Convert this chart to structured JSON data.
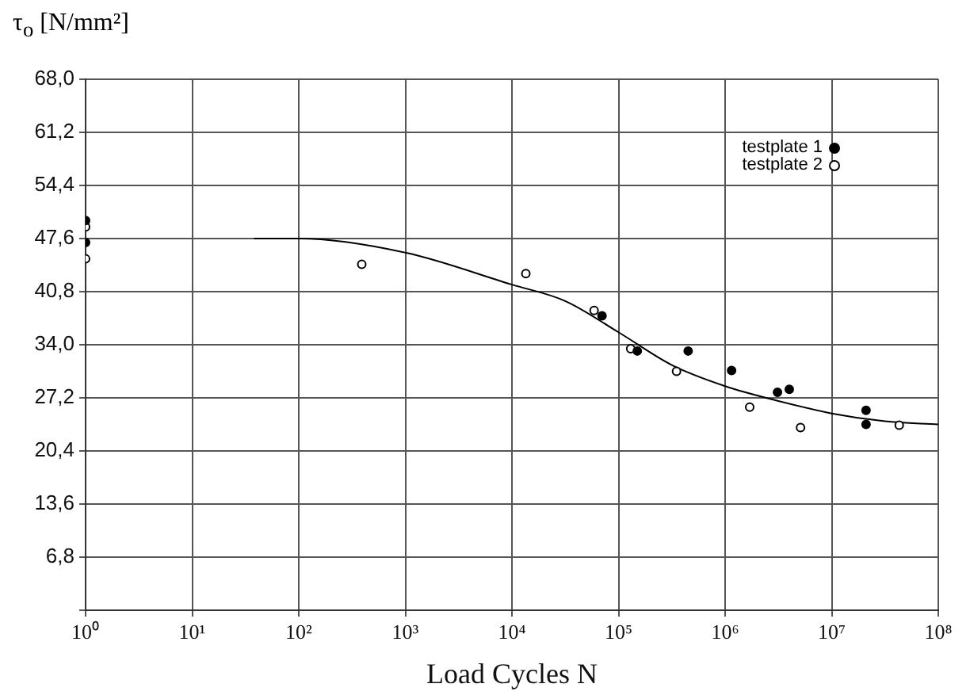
{
  "chart_data": {
    "type": "scatter",
    "ylabel": "τ$_{o}$ [N/mm²]",
    "xlabel": "Load Cycles N",
    "log": "x",
    "grid": true,
    "legend": "top right",
    "xlim": [
      1,
      100000000
    ],
    "xticks": [
      {
        "value": 1,
        "label": "10⁰"
      },
      {
        "value": 10,
        "label": "10¹"
      },
      {
        "value": 100,
        "label": "10²"
      },
      {
        "value": 1000,
        "label": "10³"
      },
      {
        "value": 10000,
        "label": "10⁴"
      },
      {
        "value": 100000,
        "label": "10⁵"
      },
      {
        "value": 1000000,
        "label": "10⁶"
      },
      {
        "value": 10000000,
        "label": "10⁷"
      },
      {
        "value": 100000000,
        "label": "10⁸"
      }
    ],
    "ylim": [
      0,
      68
    ],
    "yticks": [
      {
        "value": 0,
        "label": null
      },
      {
        "value": 6.8,
        "label": "6,8"
      },
      {
        "value": 13.6,
        "label": "13,6"
      },
      {
        "value": 20.4,
        "label": "20,4"
      },
      {
        "value": 27.2,
        "label": "27,2"
      },
      {
        "value": 34,
        "label": "34,0"
      },
      {
        "value": 40.8,
        "label": "40,8"
      },
      {
        "value": 47.6,
        "label": "47,6"
      },
      {
        "value": 54.4,
        "label": "54,4"
      },
      {
        "value": 61.2,
        "label": "61,2"
      },
      {
        "value": 68,
        "label": "68,0"
      }
    ],
    "series": [
      {
        "name": "testplate 1",
        "color": "#000000",
        "marker": "circle",
        "x": [
          1,
          1,
          70000,
          150000,
          450000,
          1150000,
          3100000,
          4000000,
          21000000,
          21000000
        ],
        "values": [
          49.9,
          47.1,
          37.7,
          33.2,
          33.2,
          30.7,
          27.9,
          28.3,
          25.6,
          23.8
        ]
      },
      {
        "name": "testplate 2",
        "color": "#000000",
        "marker": "circle",
        "x": [
          1,
          1,
          390,
          13500,
          59000,
          130000,
          350000,
          1700000,
          5100000,
          43000000
        ],
        "values": [
          49.1,
          45.0,
          44.3,
          43.1,
          38.4,
          33.5,
          30.6,
          26.0,
          23.4,
          23.7
        ]
      },
      {
        "type": "line",
        "color": "#000000",
        "marker": "none",
        "x": [
          38,
          100,
          1000,
          10000,
          31600,
          100000,
          316000,
          1000000,
          3160000,
          10000000,
          31600000,
          100000000
        ],
        "values": [
          47.6,
          47.6,
          45.8,
          41.7,
          39.6,
          35.6,
          31.4,
          28.7,
          26.8,
          25.2,
          24.2,
          23.8
        ]
      }
    ]
  }
}
